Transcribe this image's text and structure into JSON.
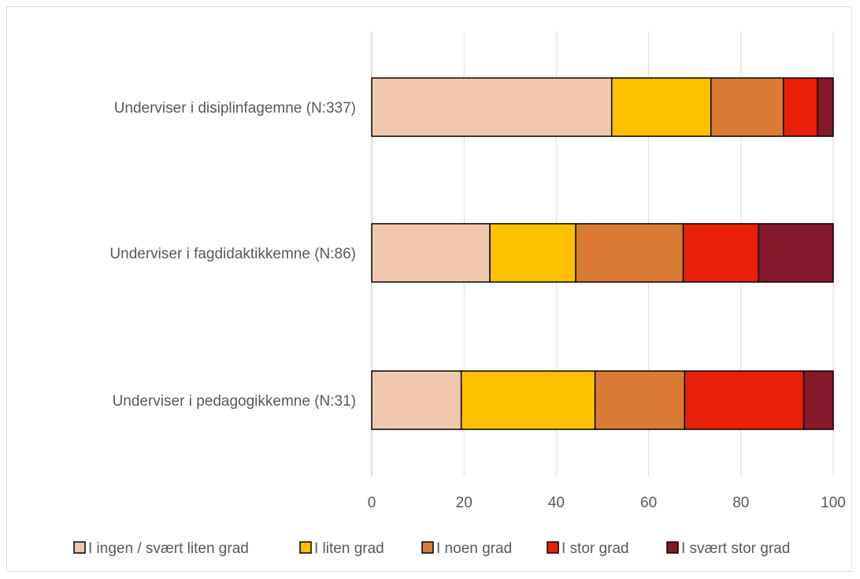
{
  "chart_data": {
    "type": "bar",
    "orientation": "horizontal",
    "stacked": true,
    "title": "",
    "xlabel": "",
    "ylabel": "",
    "xlim": [
      0,
      100
    ],
    "xticks": [
      0,
      20,
      40,
      60,
      80,
      100
    ],
    "grid": true,
    "legend_position": "bottom",
    "categories": [
      "Underviser i disiplinfagemne (N:337)",
      "Underviser i fagdidaktikkemne (N:86)",
      "Underviser i pedagogikkemne (N:31)"
    ],
    "series": [
      {
        "name": "I ingen / svært liten grad",
        "color": "#f1c8ad",
        "values": [
          52,
          25.6,
          19.4
        ]
      },
      {
        "name": "I liten grad",
        "color": "#ffc000",
        "values": [
          21.5,
          18.6,
          29.0
        ]
      },
      {
        "name": "I noen grad",
        "color": "#d97b35",
        "values": [
          15.7,
          23.3,
          19.4
        ]
      },
      {
        "name": "I stor grad",
        "color": "#e8200a",
        "values": [
          7.4,
          16.3,
          25.8
        ]
      },
      {
        "name": "I svært stor grad",
        "color": "#841a2b",
        "values": [
          3.4,
          16.2,
          6.4
        ]
      }
    ]
  }
}
